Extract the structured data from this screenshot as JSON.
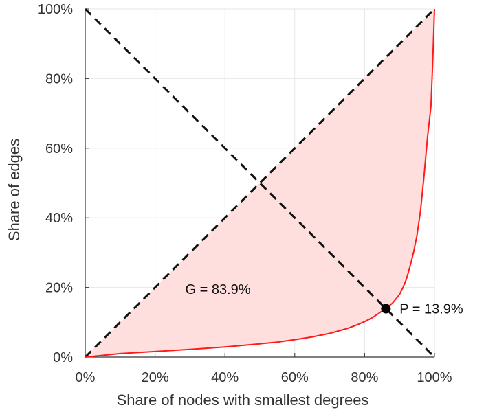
{
  "chart_data": {
    "type": "area",
    "xlabel": "Share of nodes with smallest degrees",
    "ylabel": "Share of edges",
    "xlim": [
      0,
      100
    ],
    "ylim": [
      0,
      100
    ],
    "x_ticks": [
      "0%",
      "20%",
      "40%",
      "60%",
      "80%",
      "100%"
    ],
    "y_ticks": [
      "0%",
      "20%",
      "40%",
      "60%",
      "80%",
      "100%"
    ],
    "grid": true,
    "series": [
      {
        "kind": "lorenz-curve",
        "color": "#ff1a1a",
        "fill": "#ffdede",
        "x": [
          0,
          5,
          10,
          20,
          30,
          40,
          50,
          55,
          60,
          65,
          70,
          75,
          78,
          80,
          82,
          84,
          86,
          88,
          90,
          91,
          92,
          93,
          94,
          95,
          96,
          97,
          98,
          99,
          99.5,
          100
        ],
        "y": [
          0,
          0.5,
          1,
          1.6,
          2.2,
          2.9,
          3.8,
          4.3,
          5.0,
          5.8,
          6.8,
          8.2,
          9.3,
          10.2,
          11.2,
          12.5,
          13.9,
          15.5,
          18,
          20,
          22.5,
          26,
          30,
          35,
          42,
          52,
          63,
          72,
          85,
          100
        ]
      }
    ],
    "reference_lines": [
      {
        "kind": "diagonal",
        "from": [
          0,
          0
        ],
        "to": [
          100,
          100
        ],
        "style": "dashed",
        "color": "#111111"
      },
      {
        "kind": "anti-diagonal",
        "from": [
          0,
          100
        ],
        "to": [
          100,
          0
        ],
        "style": "dashed",
        "color": "#111111"
      }
    ],
    "marker": {
      "x": 86.1,
      "y": 13.9,
      "color": "#000000"
    },
    "annotations": [
      {
        "text": "G = 83.9%",
        "x": 38,
        "y": 19.5
      },
      {
        "text": "P = 13.9%",
        "x": 90,
        "y": 13.9
      }
    ]
  }
}
